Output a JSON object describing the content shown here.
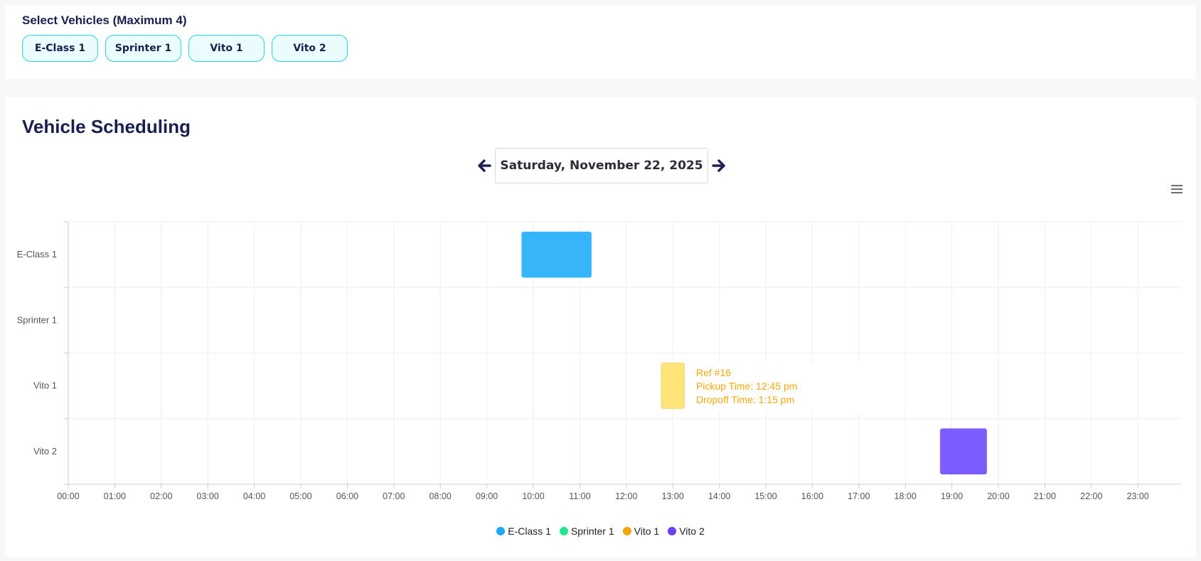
{
  "vehicle_select": {
    "title": "Select Vehicles (Maximum 4)",
    "vehicles": [
      "E-Class 1",
      "Sprinter 1",
      "Vito 1",
      "Vito 2"
    ]
  },
  "scheduling": {
    "title": "Vehicle Scheduling",
    "date": "Saturday, November 22, 2025",
    "prev_icon": "arrow-left-icon",
    "next_icon": "arrow-right-icon",
    "menu_icon": "hamburger-menu-icon"
  },
  "tooltip": {
    "ref": "Ref #16",
    "pickup": "Pickup Time: 12:45 pm",
    "dropoff": "Dropoff Time: 1:15 pm"
  },
  "chart_data": {
    "type": "timeline",
    "categories": [
      "E-Class 1",
      "Sprinter 1",
      "Vito 1",
      "Vito 2"
    ],
    "x_ticks": [
      "00:00",
      "01:00",
      "02:00",
      "03:00",
      "04:00",
      "05:00",
      "06:00",
      "07:00",
      "08:00",
      "09:00",
      "10:00",
      "11:00",
      "12:00",
      "13:00",
      "14:00",
      "15:00",
      "16:00",
      "17:00",
      "18:00",
      "19:00",
      "20:00",
      "21:00",
      "22:00",
      "23:00"
    ],
    "xlim": [
      0,
      24
    ],
    "grid": true,
    "legend_position": "bottom-center",
    "series": [
      {
        "name": "E-Class 1",
        "color": "#1ba8f5",
        "bar_color": "#37b5fb",
        "bookings": [
          {
            "start": 9.75,
            "end": 11.25
          }
        ]
      },
      {
        "name": "Sprinter 1",
        "color": "#1ee68c",
        "bar_color": "#1ee68c",
        "bookings": []
      },
      {
        "name": "Vito 1",
        "color": "#f5a30f",
        "bar_color": "#ffe47a",
        "bookings": [
          {
            "start": 12.75,
            "end": 13.25
          }
        ]
      },
      {
        "name": "Vito 2",
        "color": "#6b40ee",
        "bar_color": "#7c5cff",
        "bookings": [
          {
            "start": 18.75,
            "end": 19.75
          }
        ]
      }
    ]
  }
}
